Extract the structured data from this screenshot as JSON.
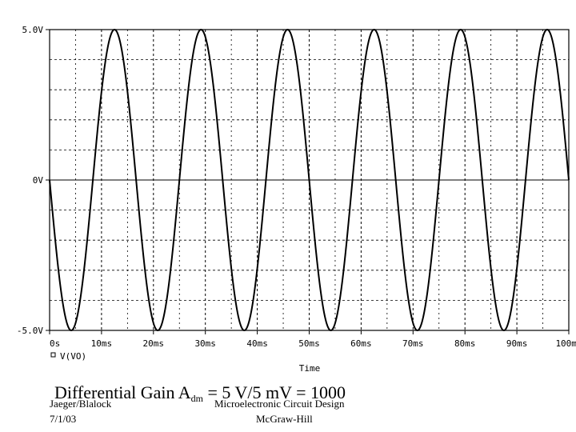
{
  "chart_data": {
    "type": "line",
    "title": "",
    "xlabel": "Time",
    "ylabel": "",
    "xlim": [
      0,
      100
    ],
    "ylim": [
      -5,
      5
    ],
    "x_unit": "ms",
    "x_ticks": [
      0,
      10,
      20,
      30,
      40,
      50,
      60,
      70,
      80,
      90,
      100
    ],
    "x_tick_labels": [
      "0s",
      "10ms",
      "20ms",
      "30ms",
      "40ms",
      "50ms",
      "60ms",
      "70ms",
      "80ms",
      "90ms",
      "100ms"
    ],
    "y_ticks": [
      -5,
      0,
      5
    ],
    "y_tick_labels": [
      "-5.0V",
      "0V",
      "5.0V"
    ],
    "grid": true,
    "legend_position": "bottom-left",
    "series": [
      {
        "name": "V(VO)",
        "color": "#000000",
        "waveform": "sine",
        "amplitude": 5,
        "offset": 0,
        "frequency_hz": 60,
        "phase_deg": 180,
        "sample_points": [
          {
            "x": 0,
            "y": 0
          },
          {
            "x": 4.17,
            "y": -5
          },
          {
            "x": 12.5,
            "y": 5
          },
          {
            "x": 20.83,
            "y": -5
          },
          {
            "x": 29.17,
            "y": 5
          },
          {
            "x": 37.5,
            "y": -5
          },
          {
            "x": 45.83,
            "y": 5
          },
          {
            "x": 54.17,
            "y": -5
          },
          {
            "x": 62.5,
            "y": 5
          },
          {
            "x": 70.83,
            "y": -5
          },
          {
            "x": 79.17,
            "y": 5
          },
          {
            "x": 87.5,
            "y": -5
          },
          {
            "x": 95.83,
            "y": 5
          },
          {
            "x": 100,
            "y": 0
          }
        ]
      }
    ]
  },
  "slide": {
    "title_main": "Differential Gain A",
    "title_sub": "dm",
    "title_rest": " = 5 V/5 mV = 1000",
    "author": "Jaeger/Blalock",
    "date": "7/1/03",
    "book": "Microelectronic Circuit Design",
    "publisher": "McGraw-Hill"
  }
}
